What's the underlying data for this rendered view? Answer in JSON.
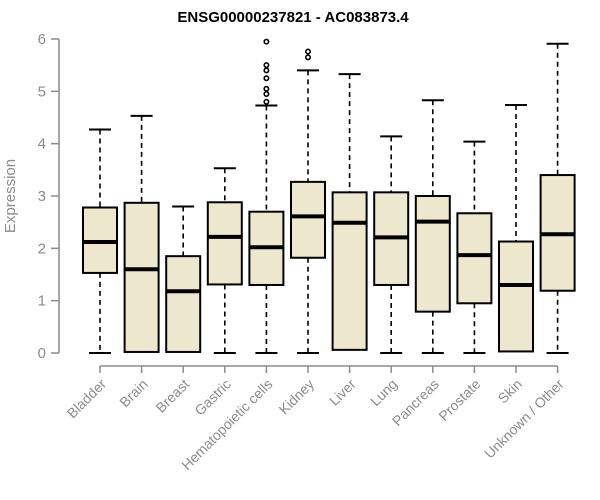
{
  "chart_data": {
    "type": "boxplot",
    "title": "ENSG00000237821 - AC083873.4",
    "ylabel": "Expression",
    "xlabel": "",
    "ylim": [
      0,
      6
    ],
    "yticks": [
      0,
      1,
      2,
      3,
      4,
      5,
      6
    ],
    "grid": false,
    "legend": "none",
    "categories": [
      "Bladder",
      "Brain",
      "Breast",
      "Gastric",
      "Hematopoietic cells",
      "Kidney",
      "Liver",
      "Lung",
      "Pancreas",
      "Prostate",
      "Skin",
      "Unknown / Other"
    ],
    "boxes": [
      {
        "category": "Bladder",
        "whisker_low": 0,
        "q1": 1.53,
        "median": 2.12,
        "q3": 2.78,
        "whisker_high": 4.27,
        "outliers": []
      },
      {
        "category": "Brain",
        "whisker_low": 0.02,
        "q1": 0.02,
        "median": 1.6,
        "q3": 2.87,
        "whisker_high": 4.53,
        "outliers": []
      },
      {
        "category": "Breast",
        "whisker_low": 0.02,
        "q1": 0.02,
        "median": 1.18,
        "q3": 1.85,
        "whisker_high": 2.8,
        "outliers": []
      },
      {
        "category": "Gastric",
        "whisker_low": 0,
        "q1": 1.31,
        "median": 2.22,
        "q3": 2.88,
        "whisker_high": 3.53,
        "outliers": []
      },
      {
        "category": "Hematopoietic cells",
        "whisker_low": 0,
        "q1": 1.3,
        "median": 2.02,
        "q3": 2.7,
        "whisker_high": 4.73,
        "outliers": [
          4.8,
          4.95,
          5.05,
          5.25,
          5.4,
          5.5,
          5.95
        ]
      },
      {
        "category": "Kidney",
        "whisker_low": 0,
        "q1": 1.82,
        "median": 2.61,
        "q3": 3.27,
        "whisker_high": 5.4,
        "outliers": [
          5.65,
          5.76
        ]
      },
      {
        "category": "Liver",
        "whisker_low": 0.06,
        "q1": 0.06,
        "median": 2.49,
        "q3": 3.07,
        "whisker_high": 5.33,
        "outliers": []
      },
      {
        "category": "Lung",
        "whisker_low": 0,
        "q1": 1.3,
        "median": 2.21,
        "q3": 3.07,
        "whisker_high": 4.14,
        "outliers": []
      },
      {
        "category": "Pancreas",
        "whisker_low": 0,
        "q1": 0.79,
        "median": 2.51,
        "q3": 3.0,
        "whisker_high": 4.83,
        "outliers": []
      },
      {
        "category": "Prostate",
        "whisker_low": 0,
        "q1": 0.95,
        "median": 1.87,
        "q3": 2.67,
        "whisker_high": 4.04,
        "outliers": []
      },
      {
        "category": "Skin",
        "whisker_low": 0.03,
        "q1": 0.03,
        "median": 1.3,
        "q3": 2.13,
        "whisker_high": 4.74,
        "outliers": []
      },
      {
        "category": "Unknown / Other",
        "whisker_low": 0,
        "q1": 1.19,
        "median": 2.27,
        "q3": 3.4,
        "whisker_high": 5.91,
        "outliers": []
      }
    ],
    "colors": {
      "box_fill": "#EDE8CD",
      "box_stroke": "#000000",
      "median": "#000000",
      "whisker": "#000000",
      "outlier": "#000000",
      "axis": "#8C8C8C",
      "title": "#000000",
      "background": "#FFFFFF"
    }
  }
}
